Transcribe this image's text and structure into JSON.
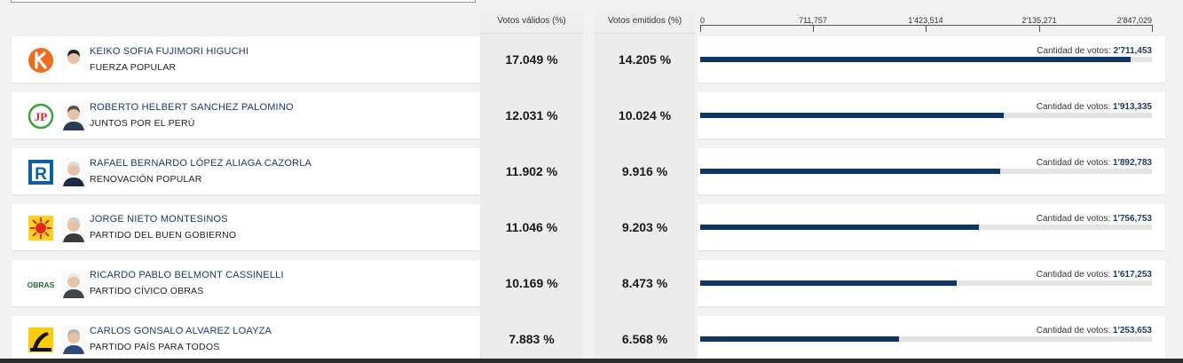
{
  "header": {
    "votos_validos_label": "Votos válidos (%)",
    "votos_emitidos_label": "Votos emitidos (%)"
  },
  "axis": {
    "max": 2847029,
    "ticks": [
      {
        "value": 0,
        "label": "0"
      },
      {
        "value": 711757,
        "label": "711,757"
      },
      {
        "value": 1423514,
        "label": "1'423,514"
      },
      {
        "value": 2135271,
        "label": "2'135,271"
      },
      {
        "value": 2847029,
        "label": "2'847,029"
      }
    ]
  },
  "votes_prefix": "Cantidad de votos: ",
  "colors": {
    "bar": "#0e3563",
    "track": "#e3e3e3",
    "name": "#1c3b6b"
  },
  "candidates": [
    {
      "name": "KEIKO SOFIA FUJIMORI HIGUCHI",
      "party": "FUERZA POPULAR",
      "valid_pct": "17.049 %",
      "emitted_pct": "14.205 %",
      "votes": 2711453,
      "votes_label": "2'711,453",
      "logo": "fuerza-popular-logo"
    },
    {
      "name": "ROBERTO HELBERT SANCHEZ PALOMINO",
      "party": "JUNTOS POR EL PERÚ",
      "valid_pct": "12.031 %",
      "emitted_pct": "10.024 %",
      "votes": 1913335,
      "votes_label": "1'913,335",
      "logo": "juntos-por-el-peru-logo"
    },
    {
      "name": "RAFAEL BERNARDO LÓPEZ ALIAGA CAZORLA",
      "party": "RENOVACIÓN POPULAR",
      "valid_pct": "11.902 %",
      "emitted_pct": "9.916 %",
      "votes": 1892783,
      "votes_label": "1'892,783",
      "logo": "renovacion-popular-logo"
    },
    {
      "name": "JORGE NIETO MONTESINOS",
      "party": "PARTIDO DEL BUEN GOBIERNO",
      "valid_pct": "11.046 %",
      "emitted_pct": "9.203 %",
      "votes": 1756753,
      "votes_label": "1'756,753",
      "logo": "buen-gobierno-logo"
    },
    {
      "name": "RICARDO PABLO BELMONT CASSINELLI",
      "party": "PARTIDO CÍVICO OBRAS",
      "valid_pct": "10.169 %",
      "emitted_pct": "8.473 %",
      "votes": 1617253,
      "votes_label": "1'617,253",
      "logo": "obras-logo",
      "logo_text": "OBRAS"
    },
    {
      "name": "CARLOS GONSALO ALVAREZ LOAYZA",
      "party": "PARTIDO PAÍS PARA TODOS",
      "valid_pct": "7.883 %",
      "emitted_pct": "6.568 %",
      "votes": 1253653,
      "votes_label": "1'253,653",
      "logo": "pais-para-todos-logo"
    }
  ]
}
